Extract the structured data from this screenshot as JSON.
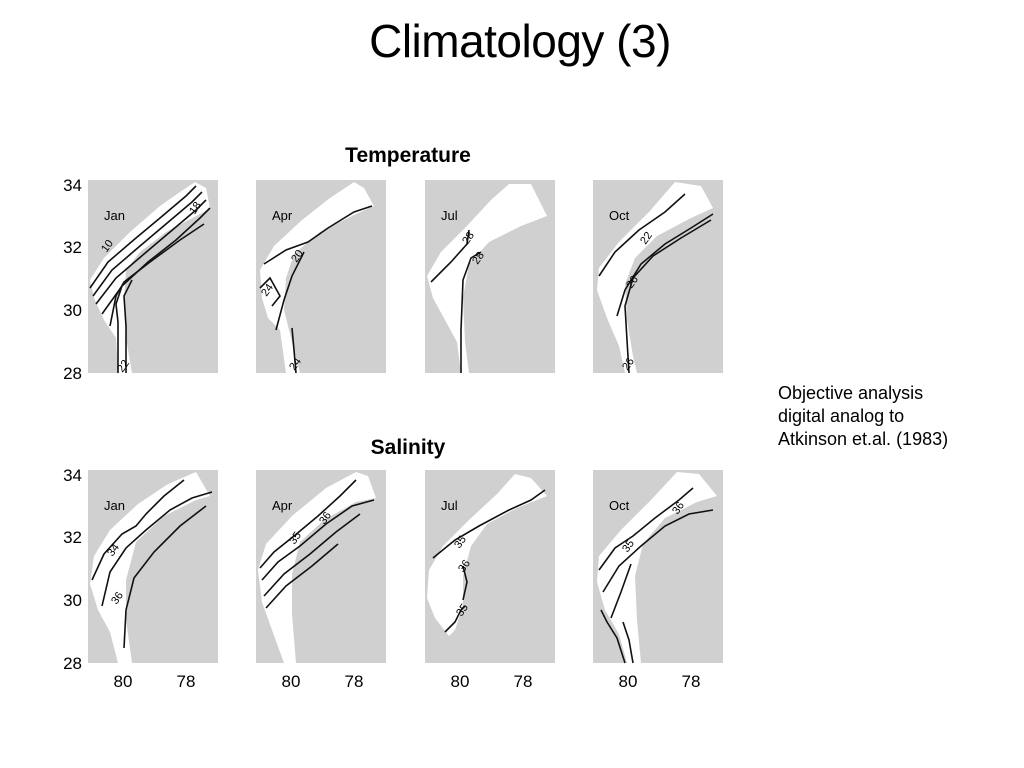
{
  "slide": {
    "title": "Climatology (3)",
    "note_lines": [
      "Objective analysis",
      "digital analog to",
      "Atkinson et.al. (1983)"
    ]
  },
  "figure": {
    "colors": {
      "land": "#d0d0d0",
      "water": "#ffffff",
      "contour": "#111111",
      "text": "#000000"
    },
    "y_ticks": [
      "34",
      "32",
      "30",
      "28"
    ],
    "x_ticks": [
      "80",
      "78"
    ],
    "rows": [
      {
        "title": "Temperature",
        "panels": [
          {
            "month": "Jan",
            "contour_labels": [
              "10",
              "18",
              "22"
            ]
          },
          {
            "month": "Apr",
            "contour_labels": [
              "20",
              "24",
              "24"
            ]
          },
          {
            "month": "Jul",
            "contour_labels": [
              "28",
              "28"
            ]
          },
          {
            "month": "Oct",
            "contour_labels": [
              "22",
              "26",
              "26"
            ]
          }
        ]
      },
      {
        "title": "Salinity",
        "panels": [
          {
            "month": "Jan",
            "contour_labels": [
              "34",
              "36"
            ]
          },
          {
            "month": "Apr",
            "contour_labels": [
              "35",
              "36"
            ]
          },
          {
            "month": "Jul",
            "contour_labels": [
              "35",
              "36",
              "35"
            ]
          },
          {
            "month": "Oct",
            "contour_labels": [
              "35",
              "36"
            ]
          }
        ]
      }
    ]
  }
}
